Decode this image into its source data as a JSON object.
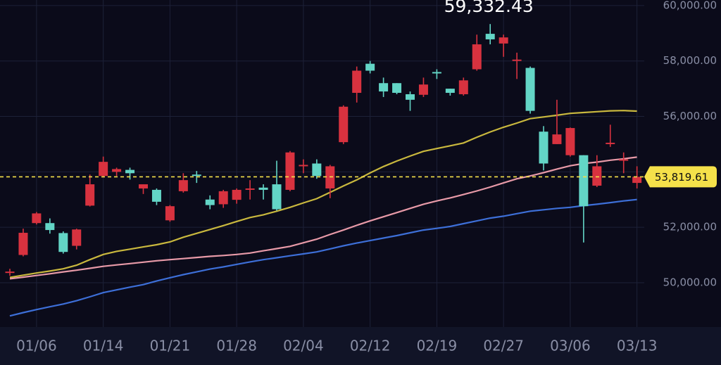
{
  "chart_data": {
    "type": "candlestick",
    "categories": [
      null,
      null,
      "01/06",
      null,
      null,
      null,
      null,
      "01/14",
      null,
      null,
      null,
      null,
      "01/21",
      null,
      null,
      null,
      null,
      "01/28",
      null,
      null,
      null,
      null,
      "02/04",
      null,
      null,
      null,
      null,
      "02/12",
      null,
      null,
      null,
      null,
      "02/19",
      null,
      null,
      null,
      null,
      "02/27",
      null,
      null,
      null,
      null,
      "03/06",
      null,
      null,
      null,
      null,
      "03/13"
    ],
    "open": [
      50350,
      51000,
      52150,
      52150,
      51790,
      51330,
      52780,
      53850,
      54000,
      54070,
      53400,
      53350,
      52250,
      53300,
      53900,
      53000,
      52830,
      52990,
      53350,
      53430,
      53550,
      53350,
      54200,
      54300,
      53400,
      55070,
      56850,
      57900,
      57200,
      57200,
      56800,
      56780,
      57600,
      57000,
      56800,
      57700,
      58980,
      58630,
      58000,
      57750,
      55450,
      55000,
      54600,
      54600,
      53500,
      55000,
      54400,
      53600
    ],
    "high": [
      50500,
      51950,
      52550,
      52320,
      51850,
      51950,
      53900,
      54550,
      54150,
      54150,
      53550,
      53400,
      52800,
      53950,
      54030,
      53150,
      53350,
      53400,
      53700,
      53550,
      54400,
      54750,
      54450,
      54450,
      54250,
      56400,
      57800,
      58000,
      57400,
      57200,
      56900,
      57400,
      57700,
      57000,
      57400,
      58950,
      59332.43,
      58950,
      58300,
      57800,
      55650,
      56600,
      55600,
      54600,
      54600,
      55700,
      54700,
      54200
    ],
    "low": [
      50250,
      50950,
      52100,
      51770,
      51050,
      51200,
      52750,
      53800,
      53850,
      53720,
      53200,
      52800,
      52200,
      53250,
      53600,
      52650,
      52700,
      52850,
      53000,
      53000,
      52600,
      53300,
      53950,
      53750,
      53050,
      55000,
      56500,
      57550,
      56700,
      56800,
      56200,
      56700,
      57350,
      56750,
      56750,
      57650,
      58600,
      58150,
      57350,
      56100,
      54050,
      55000,
      54550,
      51450,
      53450,
      54900,
      53950,
      53400
    ],
    "close": [
      50400,
      51800,
      52500,
      51900,
      51110,
      51920,
      53550,
      54360,
      54100,
      53950,
      53550,
      52920,
      52760,
      53700,
      53850,
      52800,
      53300,
      53350,
      53400,
      53350,
      52650,
      54700,
      54250,
      53850,
      54200,
      56350,
      57650,
      57650,
      56900,
      56850,
      56600,
      57150,
      57550,
      56850,
      57300,
      58600,
      58780,
      58850,
      58050,
      56200,
      54300,
      55350,
      55580,
      52760,
      54200,
      55050,
      54450,
      53820
    ],
    "up_color": "#d8323f",
    "down_color": "#63d5c6",
    "series": [
      {
        "color": "#c9b83e",
        "values": [
          50190,
          50270,
          50350,
          50420,
          50500,
          50630,
          50830,
          51020,
          51130,
          51210,
          51290,
          51370,
          51470,
          51640,
          51780,
          51920,
          52060,
          52210,
          52350,
          52450,
          52580,
          52720,
          52880,
          53030,
          53260,
          53490,
          53710,
          53960,
          54190,
          54390,
          54570,
          54740,
          54840,
          54940,
          55040,
          55250,
          55440,
          55610,
          55760,
          55920,
          55980,
          56040,
          56110,
          56140,
          56170,
          56200,
          56210,
          56190
        ]
      },
      {
        "color": "#e89aa8",
        "values": [
          50140,
          50200,
          50260,
          50320,
          50390,
          50450,
          50520,
          50590,
          50640,
          50690,
          50740,
          50790,
          50830,
          50870,
          50910,
          50950,
          50980,
          51020,
          51070,
          51150,
          51230,
          51310,
          51440,
          51570,
          51740,
          51900,
          52070,
          52230,
          52380,
          52530,
          52680,
          52830,
          52950,
          53060,
          53180,
          53310,
          53450,
          53600,
          53750,
          53850,
          53970,
          54100,
          54220,
          54300,
          54350,
          54420,
          54470,
          54530
        ]
      },
      {
        "color": "#3d6fd8",
        "values": [
          48800,
          48920,
          49030,
          49130,
          49230,
          49350,
          49490,
          49640,
          49740,
          49840,
          49930,
          50060,
          50180,
          50290,
          50390,
          50490,
          50570,
          50660,
          50750,
          50830,
          50900,
          50970,
          51040,
          51110,
          51220,
          51330,
          51430,
          51520,
          51610,
          51700,
          51800,
          51900,
          51960,
          52030,
          52130,
          52230,
          52330,
          52400,
          52490,
          52580,
          52630,
          52680,
          52720,
          52780,
          52830,
          52890,
          52950,
          53000
        ]
      }
    ],
    "ylim": [
      48400,
      60200
    ],
    "yticks": [
      {
        "value": 50000,
        "label": "50,000.00"
      },
      {
        "value": 52000,
        "label": "52,000.00"
      },
      {
        "value": 54000,
        "label": "54,000.00"
      },
      {
        "value": 56000,
        "label": "56,000.00"
      },
      {
        "value": 58000,
        "label": "58,000.00"
      },
      {
        "value": 60000,
        "label": "60,000.00"
      }
    ],
    "grid": true,
    "last_price": {
      "value": 53819.61,
      "label": "53,819.61",
      "color": "#f5e14a"
    },
    "max": {
      "value": 59332.43,
      "label": "59,332.43"
    }
  }
}
